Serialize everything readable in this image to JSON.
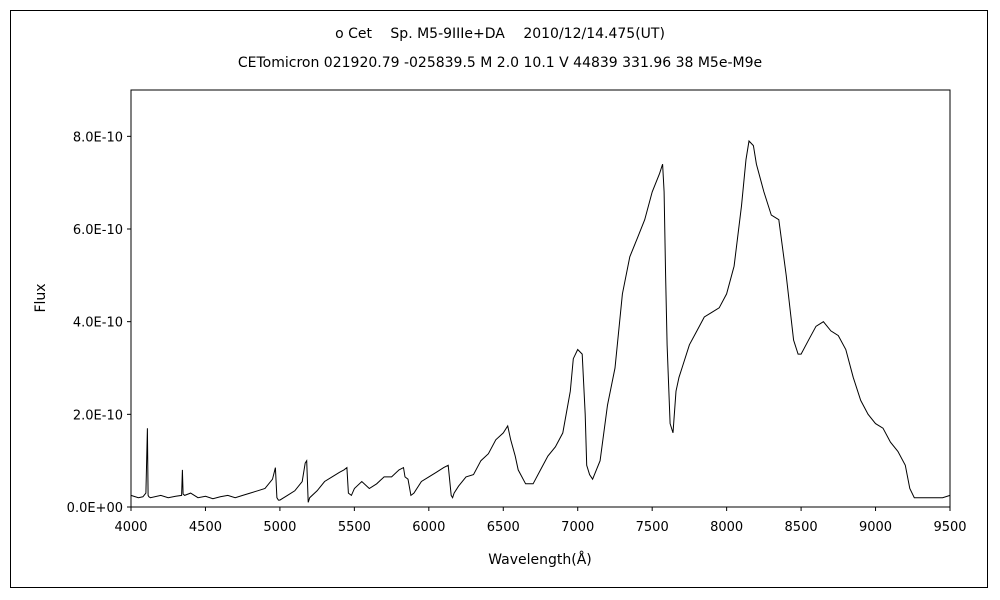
{
  "chart_data": {
    "type": "line",
    "title": "ο Cet  Sp. M5-9IIIe+DA  2010/12/14.475(UT)",
    "subtitle": "CETomicron 021920.79 -025839.5 M 2.0 10.1 V 44839 331.96 38 M5e-M9e",
    "xlabel": "Wavelength(Å)",
    "ylabel": "Flux",
    "xlim": [
      4000,
      9500
    ],
    "ylim": [
      0,
      9e-10
    ],
    "xticks": [
      4000,
      4500,
      5000,
      5500,
      6000,
      6500,
      7000,
      7500,
      8000,
      8500,
      9000,
      9500
    ],
    "xtick_labels": [
      "4000",
      "4500",
      "5000",
      "5500",
      "6000",
      "6500",
      "7000",
      "7500",
      "8000",
      "8500",
      "9000",
      "9500"
    ],
    "yticks": [
      0,
      2e-10,
      4e-10,
      6e-10,
      8e-10
    ],
    "ytick_labels": [
      "0.0E+00",
      "2.0E-10",
      "4.0E-10",
      "6.0E-10",
      "8.0E-10"
    ],
    "grid": false,
    "series": [
      {
        "color": "#000000",
        "x": [
          4000,
          4050,
          4080,
          4100,
          4110,
          4115,
          4120,
          4130,
          4200,
          4250,
          4300,
          4340,
          4345,
          4350,
          4360,
          4400,
          4450,
          4500,
          4550,
          4600,
          4650,
          4700,
          4750,
          4800,
          4850,
          4900,
          4950,
          4970,
          4980,
          4990,
          5000,
          5050,
          5100,
          5150,
          5170,
          5180,
          5190,
          5200,
          5250,
          5300,
          5350,
          5400,
          5430,
          5450,
          5460,
          5480,
          5500,
          5550,
          5600,
          5650,
          5700,
          5750,
          5800,
          5830,
          5840,
          5860,
          5880,
          5900,
          5950,
          6000,
          6050,
          6100,
          6130,
          6150,
          6160,
          6170,
          6200,
          6250,
          6300,
          6350,
          6400,
          6450,
          6500,
          6530,
          6550,
          6580,
          6600,
          6650,
          6700,
          6750,
          6800,
          6850,
          6900,
          6950,
          6970,
          7000,
          7030,
          7050,
          7060,
          7080,
          7100,
          7150,
          7200,
          7250,
          7300,
          7350,
          7400,
          7450,
          7500,
          7550,
          7570,
          7580,
          7590,
          7600,
          7620,
          7640,
          7660,
          7680,
          7700,
          7750,
          7800,
          7850,
          7900,
          7950,
          8000,
          8050,
          8100,
          8130,
          8150,
          8180,
          8200,
          8250,
          8300,
          8350,
          8400,
          8450,
          8480,
          8500,
          8550,
          8600,
          8650,
          8700,
          8750,
          8800,
          8850,
          8900,
          8950,
          9000,
          9050,
          9100,
          9150,
          9200,
          9230,
          9260,
          9300,
          9350,
          9400,
          9450,
          9500
        ],
        "y": [
          2.5e-11,
          2e-11,
          2.2e-11,
          3e-11,
          1.7e-10,
          2.5e-11,
          2.2e-11,
          2e-11,
          2.5e-11,
          2e-11,
          2.3e-11,
          2.5e-11,
          8e-11,
          2.8e-11,
          2.5e-11,
          3e-11,
          2e-11,
          2.3e-11,
          1.8e-11,
          2.2e-11,
          2.5e-11,
          2e-11,
          2.5e-11,
          3e-11,
          3.5e-11,
          4e-11,
          6e-11,
          8.5e-11,
          2e-11,
          1.5e-11,
          1.5e-11,
          2.5e-11,
          3.5e-11,
          5.5e-11,
          9.5e-11,
          1e-10,
          1e-11,
          2e-11,
          3.5e-11,
          5.5e-11,
          6.5e-11,
          7.5e-11,
          8e-11,
          8.5e-11,
          3e-11,
          2.5e-11,
          4e-11,
          5.5e-11,
          4e-11,
          5e-11,
          6.5e-11,
          6.5e-11,
          8e-11,
          8.5e-11,
          6.5e-11,
          6e-11,
          2.5e-11,
          3e-11,
          5.5e-11,
          6.5e-11,
          7.5e-11,
          8.5e-11,
          9e-11,
          2.5e-11,
          2e-11,
          3e-11,
          4.5e-11,
          6.5e-11,
          7e-11,
          1e-10,
          1.15e-10,
          1.45e-10,
          1.6e-10,
          1.75e-10,
          1.45e-10,
          1.1e-10,
          8e-11,
          5e-11,
          5e-11,
          8e-11,
          1.1e-10,
          1.3e-10,
          1.6e-10,
          2.5e-10,
          3.2e-10,
          3.4e-10,
          3.3e-10,
          2e-10,
          9e-11,
          7e-11,
          6e-11,
          1e-10,
          2.2e-10,
          3e-10,
          4.6e-10,
          5.4e-10,
          5.8e-10,
          6.2e-10,
          6.8e-10,
          7.2e-10,
          7.4e-10,
          6.8e-10,
          5e-10,
          3.5e-10,
          1.8e-10,
          1.6e-10,
          2.5e-10,
          2.8e-10,
          3e-10,
          3.5e-10,
          3.8e-10,
          4.1e-10,
          4.2e-10,
          4.3e-10,
          4.6e-10,
          5.2e-10,
          6.5e-10,
          7.5e-10,
          7.9e-10,
          7.8e-10,
          7.4e-10,
          6.8e-10,
          6.3e-10,
          6.2e-10,
          5e-10,
          3.6e-10,
          3.3e-10,
          3.3e-10,
          3.6e-10,
          3.9e-10,
          4e-10,
          3.8e-10,
          3.7e-10,
          3.4e-10,
          2.8e-10,
          2.3e-10,
          2e-10,
          1.8e-10,
          1.7e-10,
          1.4e-10,
          1.2e-10,
          9e-11,
          4e-11,
          2e-11,
          2e-11,
          2e-11,
          2e-11,
          2e-11,
          2.5e-11
        ]
      }
    ]
  }
}
